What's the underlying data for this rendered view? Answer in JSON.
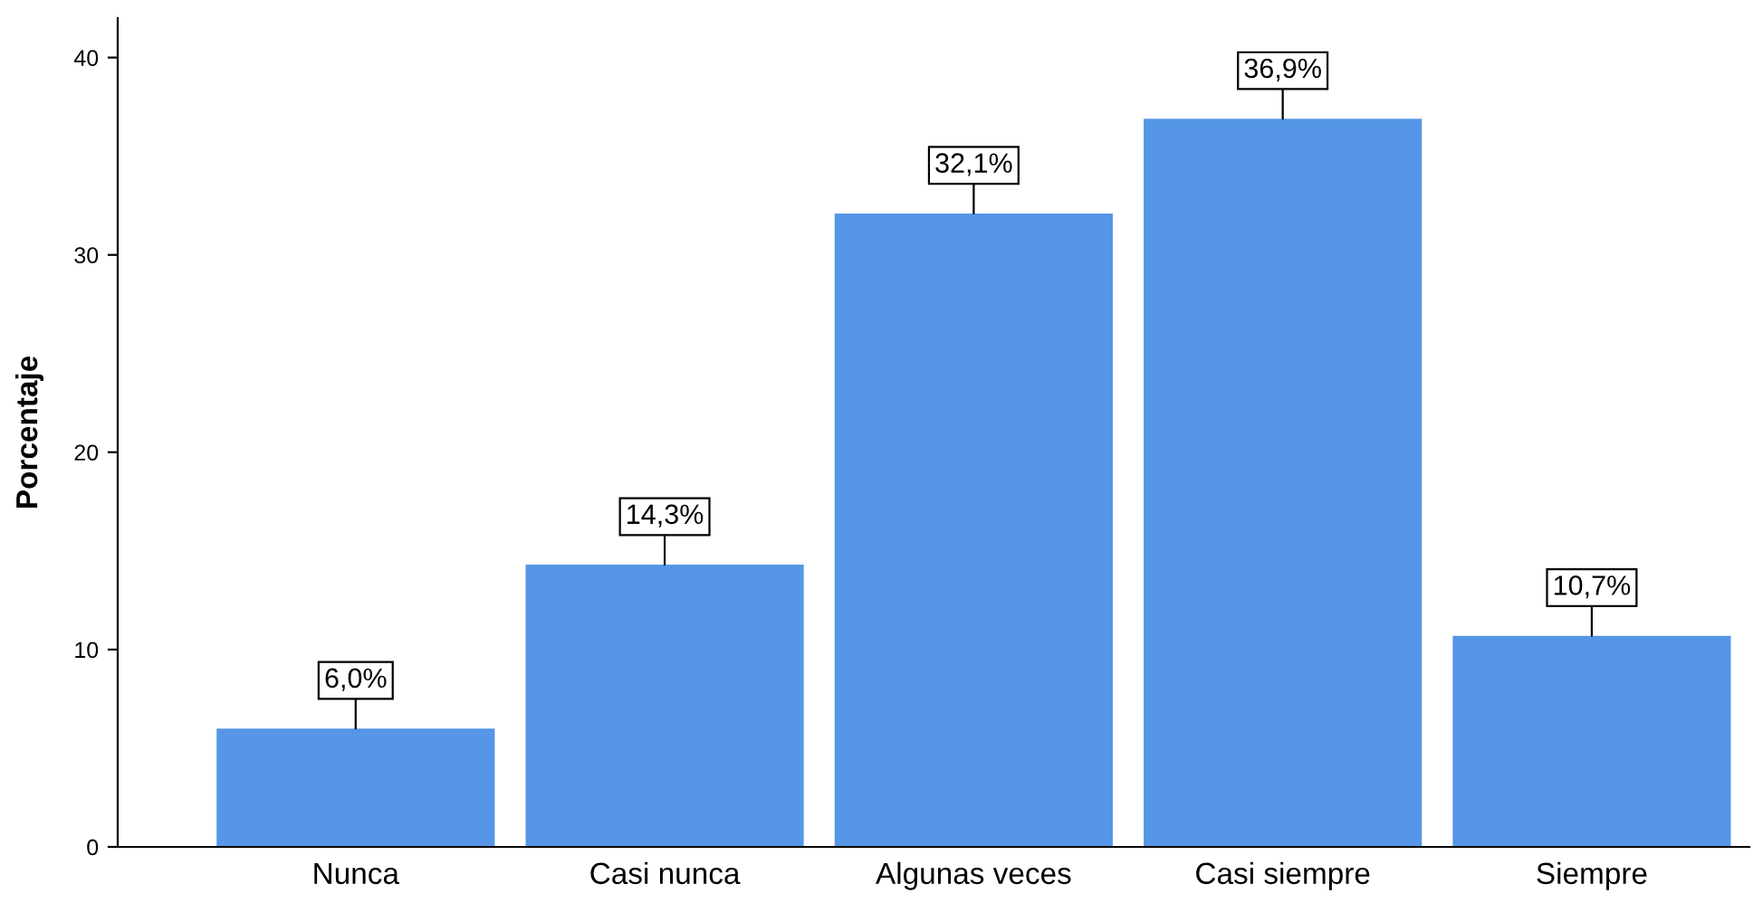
{
  "chart_data": {
    "type": "bar",
    "ylabel": "Porcentaje",
    "categories": [
      "Nunca",
      "Casi nunca",
      "Algunas veces",
      "Casi siempre",
      "Siempre"
    ],
    "values": [
      6.0,
      14.3,
      32.1,
      36.9,
      10.7
    ],
    "value_labels": [
      "6,0%",
      "14,3%",
      "32,1%",
      "36,9%",
      "10,7%"
    ],
    "color": "#5596e6",
    "ylim": [
      0,
      42
    ],
    "yticks": [
      0,
      10,
      20,
      30,
      40
    ],
    "grid": false,
    "legend": false
  }
}
